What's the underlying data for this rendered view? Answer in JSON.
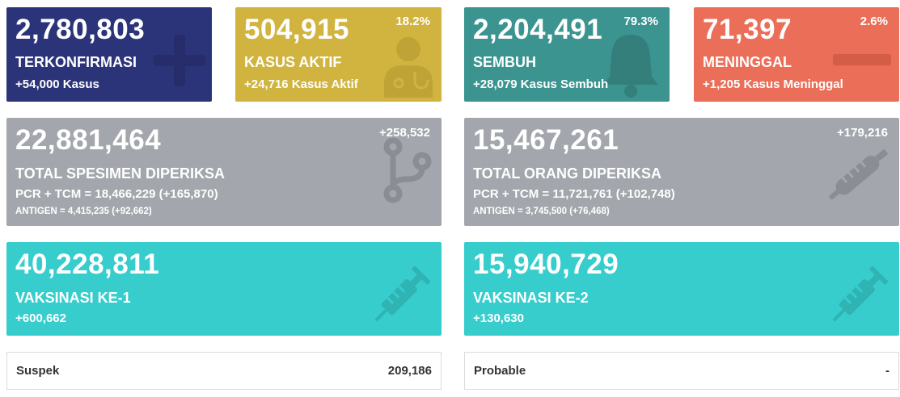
{
  "colors": {
    "confirmed": "#2c3479",
    "active": "#d1b440",
    "recovered": "#3b9490",
    "deaths": "#ea6e58",
    "specimen": "#a3a6ac",
    "vaccine": "#37cdcd"
  },
  "cards": {
    "confirmed": {
      "value": "2,780,803",
      "label": "TERKONFIRMASI",
      "delta": "+54,000 Kasus",
      "icon": "plus-icon"
    },
    "active": {
      "value": "504,915",
      "label": "KASUS AKTIF",
      "delta": "+24,716 Kasus Aktif",
      "percent": "18.2%",
      "icon": "doctor-icon"
    },
    "recovered": {
      "value": "2,204,491",
      "label": "SEMBUH",
      "delta": "+28,079 Kasus Sembuh",
      "percent": "79.3%",
      "icon": "bell-icon"
    },
    "deaths": {
      "value": "71,397",
      "label": "MENINGGAL",
      "delta": "+1,205 Kasus Meninggal",
      "percent": "2.6%",
      "icon": "minus-icon"
    },
    "specimen": {
      "value": "22,881,464",
      "label": "TOTAL SPESIMEN DIPERIKSA",
      "pcr": "PCR + TCM = 18,466,229 (+165,870)",
      "antigen": "ANTIGEN = 4,415,235 (+92,662)",
      "increase": "+258,532",
      "icon": "branch-icon"
    },
    "people": {
      "value": "15,467,261",
      "label": "TOTAL ORANG DIPERIKSA",
      "pcr": "PCR + TCM = 11,721,761 (+102,748)",
      "antigen": "ANTIGEN = 3,745,500 (+76,468)",
      "increase": "+179,216",
      "icon": "thermometer-icon"
    },
    "vaccine1": {
      "value": "40,228,811",
      "label": "VAKSINASI KE-1",
      "delta": "+600,662",
      "icon": "syringe-icon"
    },
    "vaccine2": {
      "value": "15,940,729",
      "label": "VAKSINASI KE-2",
      "delta": "+130,630",
      "icon": "syringe-icon"
    }
  },
  "rows": {
    "suspect": {
      "label": "Suspek",
      "value": "209,186"
    },
    "probable": {
      "label": "Probable",
      "value": "-"
    }
  }
}
